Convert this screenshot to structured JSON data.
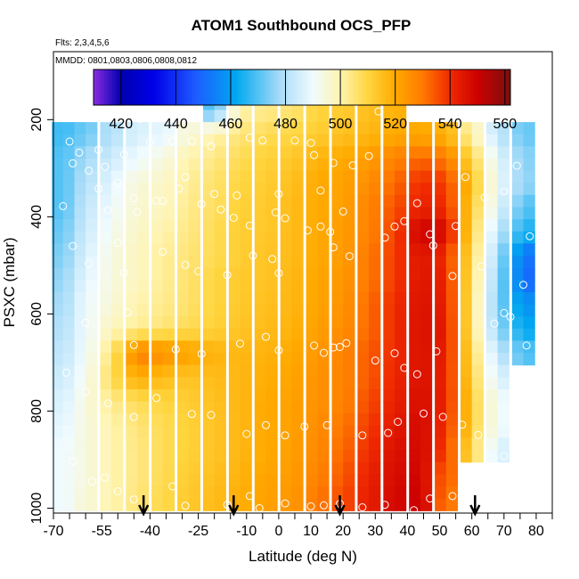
{
  "chart_data": {
    "type": "heatmap",
    "title": "ATOM1 Southbound OCS_PFP",
    "subtitle_flights": "Flts: 2,3,4,5,6",
    "subtitle_dates": "MMDD: 0801,0803,0806,0808,0812",
    "xlabel": "Latitude (deg N)",
    "ylabel": "PSXC (mbar)",
    "xlim": [
      -70,
      85
    ],
    "ylim": [
      1010,
      60
    ],
    "x_ticks": [
      -70,
      -55,
      -40,
      -25,
      -10,
      0,
      10,
      20,
      30,
      40,
      50,
      60,
      70,
      80
    ],
    "x_tick_labels": [
      "-70",
      "-55",
      "-40",
      "-25",
      "-10",
      "0",
      "10",
      "20",
      "30",
      "40",
      "50",
      "60",
      "70",
      "80"
    ],
    "y_ticks": [
      200,
      400,
      600,
      800,
      1000
    ],
    "y_tick_labels": [
      "200",
      "400",
      "600",
      "800",
      "1000"
    ],
    "colorbar": {
      "range": [
        410,
        562
      ],
      "ticks": [
        420,
        440,
        460,
        480,
        500,
        520,
        540,
        560
      ],
      "tick_labels": [
        "420",
        "440",
        "460",
        "480",
        "500",
        "520",
        "540",
        "560"
      ],
      "stops": [
        {
          "v": 410,
          "c": "#8a2be2"
        },
        {
          "v": 420,
          "c": "#0000b0"
        },
        {
          "v": 432,
          "c": "#0000e8"
        },
        {
          "v": 447,
          "c": "#1e5aff"
        },
        {
          "v": 462,
          "c": "#00a8f0"
        },
        {
          "v": 478,
          "c": "#a8dcf8"
        },
        {
          "v": 490,
          "c": "#f0fbff"
        },
        {
          "v": 500,
          "c": "#fff4b0"
        },
        {
          "v": 510,
          "c": "#ffd640"
        },
        {
          "v": 520,
          "c": "#ffaa00"
        },
        {
          "v": 530,
          "c": "#ff7a00"
        },
        {
          "v": 540,
          "c": "#f02a00"
        },
        {
          "v": 550,
          "c": "#cc0000"
        },
        {
          "v": 562,
          "c": "#7a1010"
        }
      ]
    },
    "grid": false,
    "pressure_levels": [
      180,
      230,
      280,
      330,
      380,
      430,
      480,
      530,
      580,
      630,
      680,
      730,
      780,
      830,
      880,
      930,
      980
    ],
    "latitude_bins": [
      -67,
      -60,
      -52,
      -44,
      -36,
      -28,
      -20,
      -12,
      -4,
      4,
      12,
      20,
      28,
      36,
      44,
      52,
      60,
      68,
      76
    ],
    "field_ocs_ppt": [
      [
        null,
        null,
        null,
        null,
        null,
        null,
        470,
        500,
        503,
        505,
        510,
        512,
        515,
        518,
        null,
        null,
        null,
        null,
        null
      ],
      [
        468,
        472,
        480,
        486,
        488,
        495,
        500,
        505,
        508,
        510,
        512,
        515,
        517,
        520,
        520,
        518,
        500,
        482,
        472
      ],
      [
        470,
        478,
        484,
        490,
        494,
        500,
        504,
        508,
        511,
        513,
        518,
        520,
        523,
        528,
        533,
        530,
        510,
        488,
        475
      ],
      [
        470,
        480,
        488,
        495,
        497,
        502,
        506,
        510,
        512,
        515,
        520,
        522,
        526,
        532,
        540,
        538,
        515,
        490,
        476
      ],
      [
        470,
        482,
        490,
        496,
        498,
        503,
        507,
        511,
        513,
        516,
        520,
        522,
        528,
        535,
        542,
        540,
        512,
        488,
        470
      ],
      [
        472,
        484,
        492,
        497,
        500,
        504,
        508,
        512,
        513,
        516,
        520,
        523,
        528,
        537,
        550,
        548,
        510,
        482,
        465
      ],
      [
        474,
        486,
        494,
        498,
        502,
        505,
        508,
        512,
        514,
        516,
        520,
        523,
        530,
        538,
        545,
        540,
        508,
        478,
        452
      ],
      [
        476,
        488,
        494,
        498,
        502,
        506,
        510,
        513,
        514,
        517,
        521,
        524,
        530,
        538,
        545,
        542,
        506,
        476,
        450
      ],
      [
        478,
        490,
        495,
        500,
        503,
        506,
        510,
        513,
        515,
        517,
        521,
        525,
        532,
        540,
        546,
        543,
        505,
        474,
        458
      ],
      [
        480,
        490,
        498,
        502,
        505,
        508,
        511,
        514,
        516,
        518,
        522,
        526,
        532,
        540,
        546,
        544,
        505,
        476,
        462
      ],
      [
        482,
        490,
        505,
        530,
        526,
        522,
        518,
        517,
        518,
        520,
        524,
        528,
        534,
        540,
        546,
        543,
        508,
        482,
        470
      ],
      [
        484,
        492,
        508,
        520,
        516,
        514,
        516,
        517,
        519,
        521,
        525,
        528,
        534,
        541,
        546,
        542,
        510,
        486,
        null
      ],
      [
        486,
        494,
        503,
        508,
        510,
        512,
        515,
        517,
        520,
        522,
        525,
        528,
        536,
        542,
        547,
        542,
        512,
        490,
        null
      ],
      [
        488,
        494,
        500,
        505,
        508,
        511,
        514,
        517,
        520,
        522,
        526,
        530,
        538,
        544,
        548,
        540,
        512,
        490,
        null
      ],
      [
        490,
        494,
        500,
        504,
        508,
        511,
        514,
        517,
        520,
        522,
        527,
        532,
        540,
        546,
        548,
        538,
        508,
        486,
        null
      ],
      [
        490,
        494,
        500,
        504,
        508,
        512,
        515,
        518,
        521,
        523,
        528,
        534,
        542,
        547,
        549,
        532,
        null,
        null,
        null
      ],
      [
        490,
        495,
        500,
        505,
        509,
        513,
        516,
        519,
        522,
        524,
        530,
        536,
        543,
        548,
        550,
        530,
        null,
        null,
        null
      ]
    ],
    "sample_points": [
      [
        -43,
        198
      ],
      [
        -65,
        245
      ],
      [
        -62,
        268
      ],
      [
        -56,
        262
      ],
      [
        -48,
        272
      ],
      [
        -40,
        246
      ],
      [
        -33,
        244
      ],
      [
        -27,
        244
      ],
      [
        -21,
        255
      ],
      [
        -9,
        237
      ],
      [
        -5,
        243
      ],
      [
        5,
        243
      ],
      [
        10,
        248
      ],
      [
        31,
        183
      ],
      [
        -64,
        290
      ],
      [
        -59,
        305
      ],
      [
        -54,
        297
      ],
      [
        -50,
        330
      ],
      [
        -45,
        362
      ],
      [
        -38,
        367
      ],
      [
        -31,
        342
      ],
      [
        -20,
        353
      ],
      [
        -13,
        356
      ],
      [
        0,
        353
      ],
      [
        11,
        273
      ],
      [
        13,
        346
      ],
      [
        17,
        289
      ],
      [
        23,
        294
      ],
      [
        28,
        275
      ],
      [
        -67,
        378
      ],
      [
        -56,
        342
      ],
      [
        -53,
        386
      ],
      [
        -44,
        390
      ],
      [
        -36,
        367
      ],
      [
        -29,
        318
      ],
      [
        -24,
        374
      ],
      [
        -18,
        385
      ],
      [
        -14,
        402
      ],
      [
        -9,
        418
      ],
      [
        -1,
        391
      ],
      [
        2,
        403
      ],
      [
        13,
        420
      ],
      [
        16,
        431
      ],
      [
        20,
        389
      ],
      [
        36,
        420
      ],
      [
        39,
        409
      ],
      [
        43,
        372
      ],
      [
        47,
        436
      ],
      [
        55,
        419
      ],
      [
        58,
        318
      ],
      [
        64,
        360
      ],
      [
        70,
        348
      ],
      [
        74,
        295
      ],
      [
        78,
        440
      ],
      [
        -64,
        460
      ],
      [
        -59,
        496
      ],
      [
        -50,
        454
      ],
      [
        -48,
        515
      ],
      [
        -36,
        472
      ],
      [
        -29,
        499
      ],
      [
        -25,
        512
      ],
      [
        -16,
        520
      ],
      [
        -8,
        480
      ],
      [
        -2,
        487
      ],
      [
        0,
        516
      ],
      [
        9,
        428
      ],
      [
        17,
        463
      ],
      [
        22,
        481
      ],
      [
        33,
        443
      ],
      [
        48,
        459
      ],
      [
        54,
        522
      ],
      [
        63,
        502
      ],
      [
        70,
        598
      ],
      [
        76,
        540
      ],
      [
        81,
        485
      ],
      [
        -60,
        618
      ],
      [
        -47,
        597
      ],
      [
        -45,
        664
      ],
      [
        -32,
        673
      ],
      [
        -24,
        682
      ],
      [
        -12,
        661
      ],
      [
        -4,
        647
      ],
      [
        0,
        675
      ],
      [
        11,
        665
      ],
      [
        14,
        680
      ],
      [
        17,
        669
      ],
      [
        19,
        668
      ],
      [
        21,
        660
      ],
      [
        30,
        696
      ],
      [
        36,
        681
      ],
      [
        39,
        711
      ],
      [
        43,
        724
      ],
      [
        49,
        677
      ],
      [
        67,
        620
      ],
      [
        72,
        606
      ],
      [
        77,
        665
      ],
      [
        -66,
        721
      ],
      [
        -60,
        760
      ],
      [
        -53,
        784
      ],
      [
        -45,
        812
      ],
      [
        -38,
        773
      ],
      [
        -27,
        806
      ],
      [
        -21,
        808
      ],
      [
        -10,
        847
      ],
      [
        -4,
        829
      ],
      [
        2,
        850
      ],
      [
        8,
        832
      ],
      [
        15,
        829
      ],
      [
        26,
        850
      ],
      [
        34,
        845
      ],
      [
        37,
        822
      ],
      [
        45,
        805
      ],
      [
        51,
        812
      ],
      [
        57,
        828
      ],
      [
        62,
        849
      ],
      [
        70,
        893
      ],
      [
        74,
        851
      ],
      [
        77,
        838
      ],
      [
        -64,
        903
      ],
      [
        -58,
        945
      ],
      [
        -54,
        937
      ],
      [
        -50,
        965
      ],
      [
        -45,
        982
      ],
      [
        -33,
        955
      ],
      [
        -29,
        995
      ],
      [
        -16,
        993
      ],
      [
        -9,
        975
      ],
      [
        -6,
        1000
      ],
      [
        2,
        990
      ],
      [
        10,
        996
      ],
      [
        14,
        994
      ],
      [
        19,
        991
      ],
      [
        26,
        998
      ],
      [
        33,
        993
      ],
      [
        42,
        1004
      ],
      [
        47,
        980
      ],
      [
        54,
        975
      ],
      [
        61,
        1000
      ],
      [
        70,
        998
      ]
    ],
    "sample_point_color": "#ffffff",
    "arrows_latitude": [
      -42,
      -14,
      19,
      61
    ],
    "arrow_color": "#000000"
  }
}
